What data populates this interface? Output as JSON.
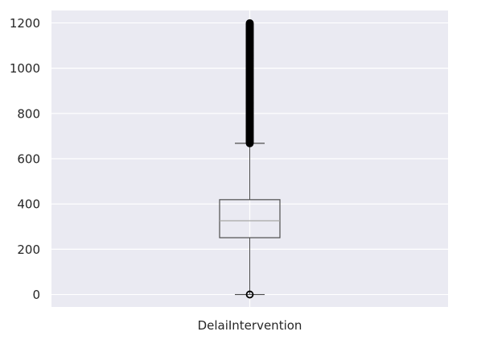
{
  "chart_data": {
    "type": "box",
    "title": "",
    "xlabel": "",
    "ylabel": "",
    "categories": [
      "DelaiIntervention"
    ],
    "ylim": [
      -55,
      1255
    ],
    "y_ticks": [
      0,
      200,
      400,
      600,
      800,
      1000,
      1200
    ],
    "grid": true,
    "boxes": [
      {
        "name": "DelaiIntervention",
        "whisker_low": 0,
        "q1": 251,
        "median": 326,
        "q3": 419,
        "whisker_high": 668,
        "outliers_low": [
          0
        ],
        "outliers_high_range": [
          668,
          1200
        ]
      }
    ],
    "colors": {
      "background": "#eaeaf2",
      "grid": "#ffffff",
      "box_edge": "#4d4d4d",
      "median": "#a6a6a6",
      "outlier": "#000000"
    }
  }
}
